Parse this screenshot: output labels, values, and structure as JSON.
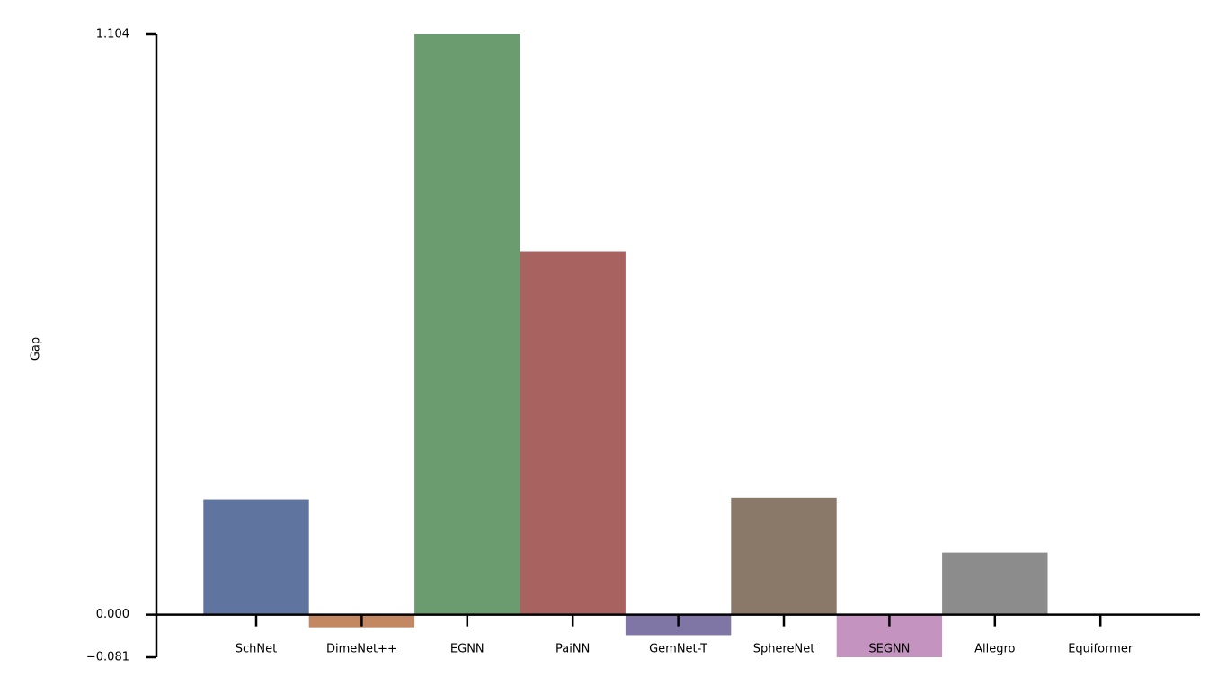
{
  "chart_data": {
    "type": "bar",
    "y_label": "Gap",
    "categories": [
      "SchNet",
      "DimeNet++",
      "EGNN",
      "PaiNN",
      "GemNet-T",
      "SphereNet",
      "SEGNN",
      "Allegro",
      "Equiformer"
    ],
    "values": [
      0.219,
      -0.024,
      1.104,
      0.691,
      -0.039,
      0.222,
      -0.081,
      0.118,
      0
    ],
    "colors": [
      "#6074a0",
      "#c38862",
      "#6a9c6f",
      "#a86260",
      "#7f76a5",
      "#8a7968",
      "#c593bf",
      "#8c8c8c",
      "#cbbd7f"
    ],
    "ylim": [
      -0.081,
      1.104
    ],
    "yticks": [
      {
        "value": -0.081,
        "label": "−0.081"
      },
      {
        "value": 0,
        "label": "0.000"
      },
      1.104
    ],
    "grid": false
  }
}
